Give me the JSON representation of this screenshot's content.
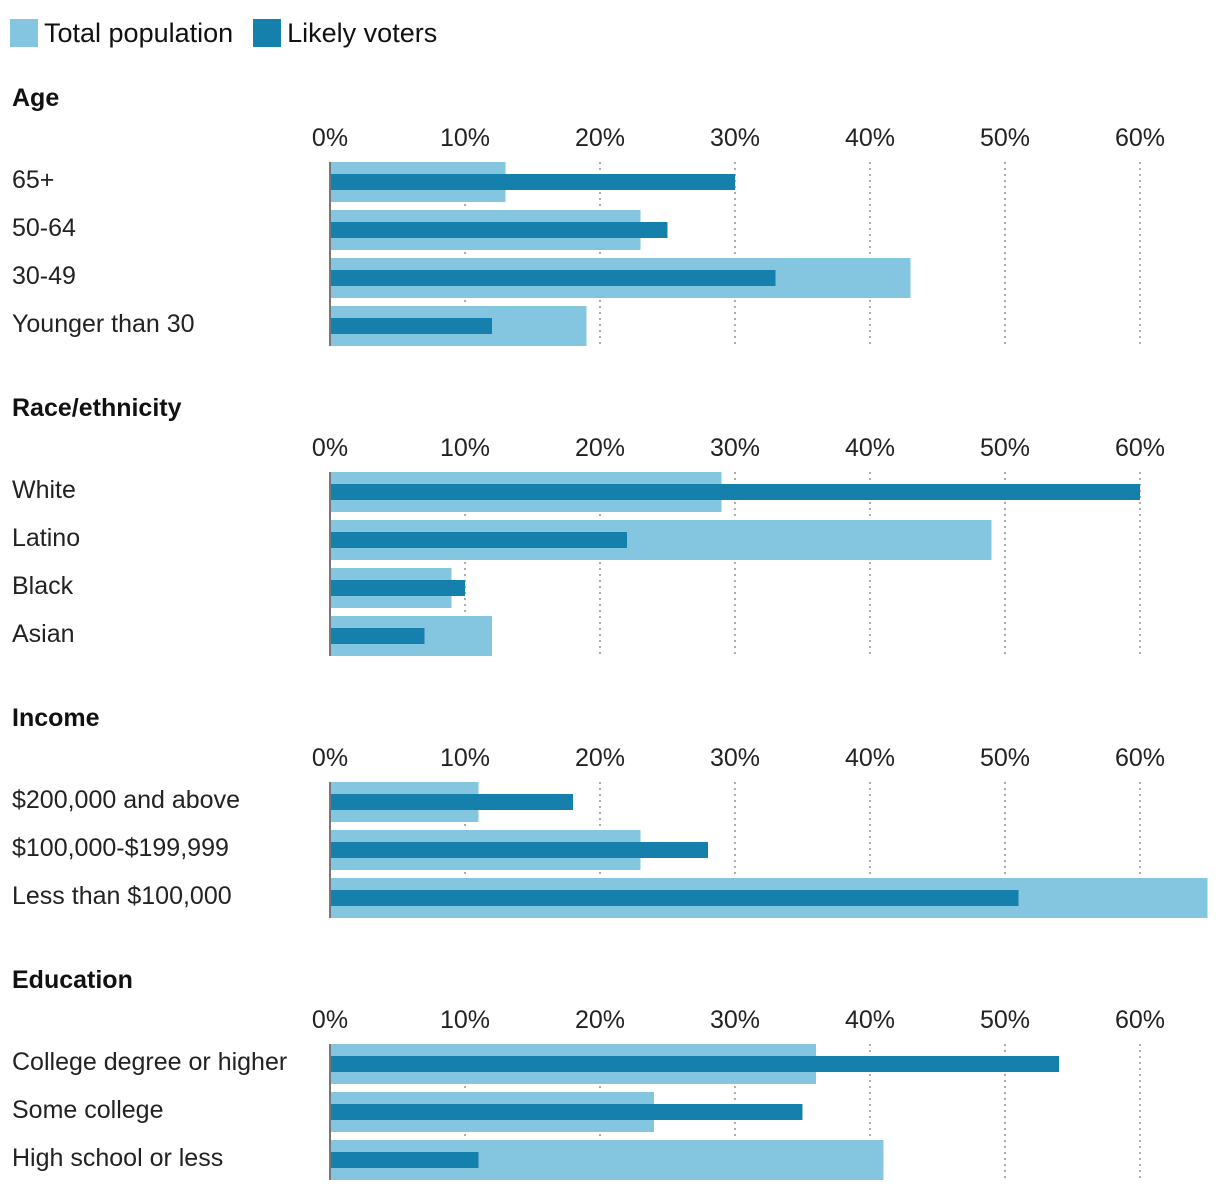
{
  "legend": {
    "total_label": "Total population",
    "voters_label": "Likely voters"
  },
  "colors": {
    "total": "#84c5df",
    "voters": "#1480ab",
    "grid": "#9a9a9a",
    "axis": "#777777"
  },
  "chart_data": {
    "type": "bar",
    "orientation": "horizontal",
    "series_names": [
      "Total population",
      "Likely voters"
    ],
    "tick_values": [
      0,
      10,
      20,
      30,
      40,
      50,
      60
    ],
    "tick_labels": [
      "0%",
      "10%",
      "20%",
      "30%",
      "40%",
      "50%",
      "60%"
    ],
    "xlim": [
      0,
      65
    ],
    "panels": [
      {
        "title": "Age",
        "rows": [
          {
            "label": "65+",
            "total": 13,
            "voters": 30
          },
          {
            "label": "50-64",
            "total": 23,
            "voters": 25
          },
          {
            "label": "30-49",
            "total": 43,
            "voters": 33
          },
          {
            "label": "Younger than 30",
            "total": 19,
            "voters": 12
          }
        ]
      },
      {
        "title": "Race/ethnicity",
        "rows": [
          {
            "label": "White",
            "total": 29,
            "voters": 60
          },
          {
            "label": "Latino",
            "total": 49,
            "voters": 22
          },
          {
            "label": "Black",
            "total": 9,
            "voters": 10
          },
          {
            "label": "Asian",
            "total": 12,
            "voters": 7
          }
        ]
      },
      {
        "title": "Income",
        "rows": [
          {
            "label": "$200,000 and above",
            "total": 11,
            "voters": 18
          },
          {
            "label": "$100,000-$199,999",
            "total": 23,
            "voters": 28
          },
          {
            "label": "Less than $100,000",
            "total": 65,
            "voters": 51
          }
        ]
      },
      {
        "title": "Education",
        "rows": [
          {
            "label": "College degree or higher",
            "total": 36,
            "voters": 54
          },
          {
            "label": "Some college",
            "total": 24,
            "voters": 35
          },
          {
            "label": "High school or less",
            "total": 41,
            "voters": 11
          }
        ]
      }
    ]
  }
}
